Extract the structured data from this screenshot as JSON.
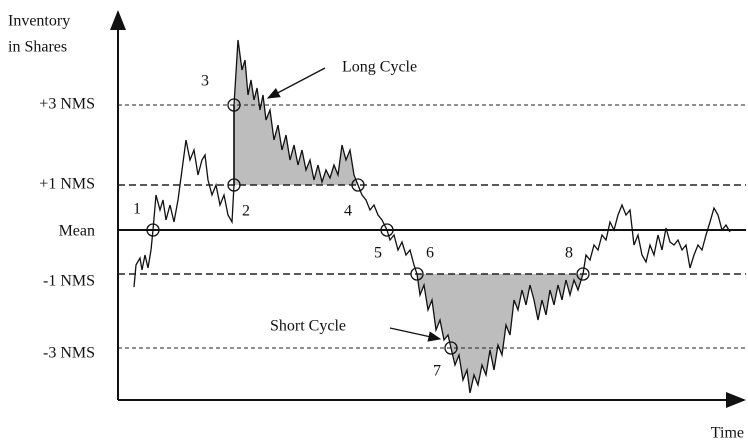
{
  "axes": {
    "y_label": [
      "Inventory",
      "in Shares"
    ],
    "x_label": "Time"
  },
  "levels": [
    "+3 NMS",
    "+1 NMS",
    "Mean",
    "-1 NMS",
    "-3 NMS"
  ],
  "points": [
    "1",
    "2",
    "3",
    "4",
    "5",
    "6",
    "7",
    "8"
  ],
  "annotations": {
    "long": "Long Cycle",
    "short": "Short Cycle"
  }
}
